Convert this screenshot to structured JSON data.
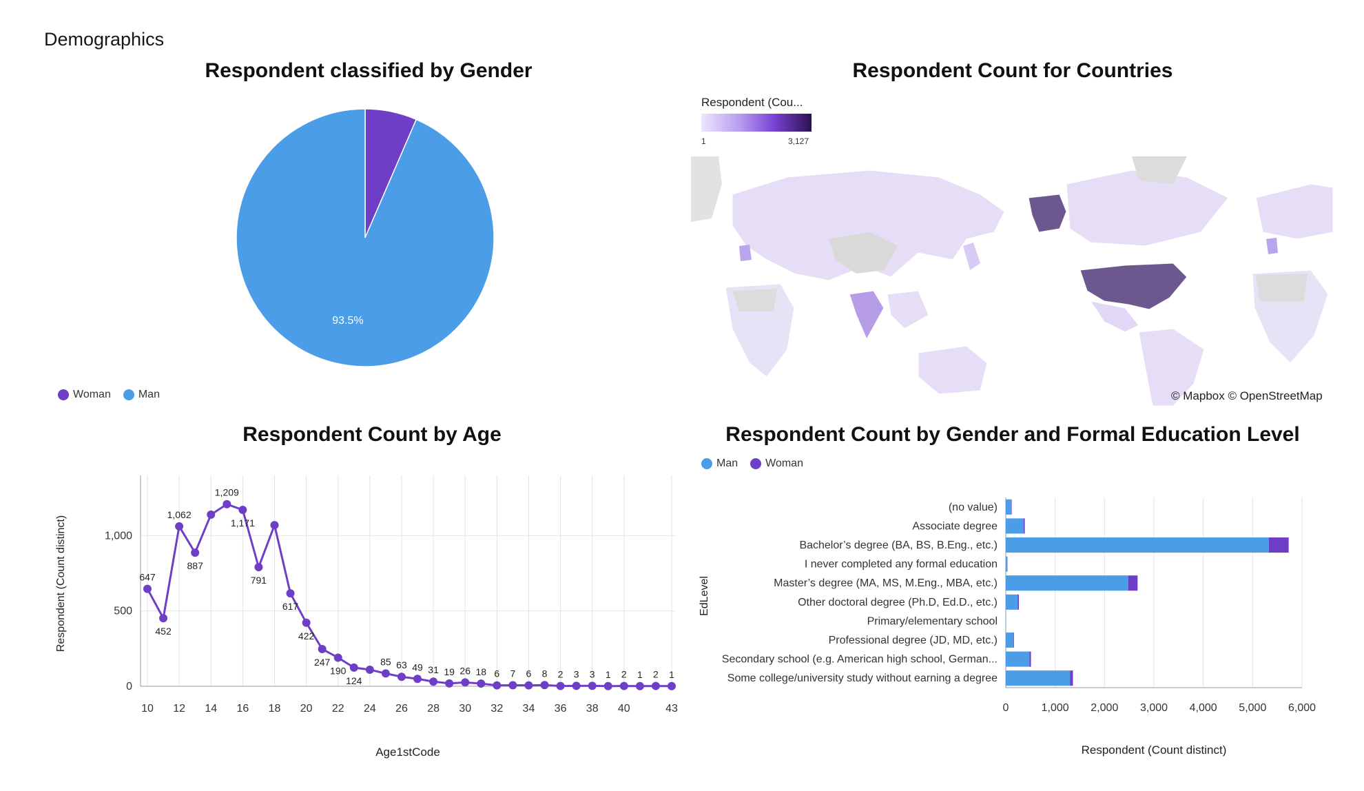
{
  "page_title": "Demographics",
  "colors": {
    "man": "#4a9de6",
    "woman": "#6e3fc6",
    "grid": "#e0e0e0",
    "axis": "#999999"
  },
  "gender_chart": {
    "title": "Respondent classified by Gender",
    "legend": [
      {
        "label": "Woman",
        "color": "#6e3fc6"
      },
      {
        "label": "Man",
        "color": "#4a9de6"
      }
    ]
  },
  "countries_chart": {
    "title": "Respondent Count for Countries",
    "legend_title": "Respondent (Cou...",
    "legend_min": "1",
    "legend_max": "3,127",
    "credit": "© Mapbox © OpenStreetMap"
  },
  "age_chart": {
    "title": "Respondent Count by Age",
    "xlabel": "Age1stCode",
    "ylabel": "Respondent (Count distinct)"
  },
  "edu_chart": {
    "title": "Respondent Count by Gender and Formal Education Level",
    "ylabel": "EdLevel",
    "xlabel": "Respondent (Count distinct)",
    "legend": [
      {
        "label": "Man",
        "color": "#4a9de6"
      },
      {
        "label": "Woman",
        "color": "#6e3fc6"
      }
    ]
  },
  "chart_data": [
    {
      "type": "pie",
      "title": "Respondent classified by Gender",
      "categories": [
        "Woman",
        "Man"
      ],
      "values": [
        6.5,
        93.5
      ],
      "labels": [
        "",
        "93.5%"
      ],
      "colors": [
        "#6e3fc6",
        "#4a9de6"
      ]
    },
    {
      "type": "line",
      "title": "Respondent Count by Age",
      "xlabel": "Age1stCode",
      "ylabel": "Respondent (Count distinct)",
      "x": [
        10,
        11,
        12,
        13,
        14,
        15,
        16,
        17,
        18,
        19,
        20,
        21,
        22,
        23,
        24,
        25,
        26,
        27,
        28,
        29,
        30,
        31,
        32,
        33,
        34,
        35,
        36,
        37,
        38,
        39,
        40,
        41,
        42,
        43
      ],
      "values": [
        647,
        452,
        1062,
        887,
        1140,
        1209,
        1171,
        791,
        1070,
        617,
        422,
        247,
        190,
        124,
        110,
        85,
        63,
        49,
        31,
        19,
        26,
        18,
        6,
        7,
        6,
        8,
        2,
        3,
        3,
        1,
        2,
        1,
        2,
        1
      ],
      "point_labels": [
        "647",
        "452",
        "1,062",
        "887",
        "",
        "1,209",
        "1,171",
        "791",
        "",
        "617",
        "422",
        "247",
        "190",
        "124",
        "",
        "85",
        "63",
        "49",
        "31",
        "19",
        "26",
        "18",
        "6",
        "7",
        "6",
        "8",
        "2",
        "3",
        "3",
        "1",
        "2",
        "1",
        "2",
        "1"
      ],
      "x_ticks": [
        "10",
        "12",
        "14",
        "16",
        "18",
        "20",
        "22",
        "24",
        "26",
        "28",
        "30",
        "32",
        "34",
        "36",
        "38",
        "40",
        "43"
      ],
      "y_ticks": [
        "0",
        "500",
        "1,000"
      ],
      "ylim": [
        0,
        1400
      ],
      "grid": true,
      "color": "#6e3fc6"
    },
    {
      "type": "bar",
      "orientation": "horizontal",
      "stacked": true,
      "title": "Respondent Count by Gender and Formal Education Level",
      "xlabel": "Respondent (Count distinct)",
      "ylabel": "EdLevel",
      "categories": [
        "(no value)",
        "Associate degree",
        "Bachelor’s degree (BA, BS, B.Eng., etc.)",
        "I never completed any formal education",
        "Master’s degree (MA, MS, M.Eng., MBA, etc.)",
        "Other doctoral degree (Ph.D, Ed.D., etc.)",
        "Primary/elementary school",
        "Professional degree (JD, MD, etc.)",
        "Secondary school (e.g. American high school, German...",
        "Some college/university study without earning a degree"
      ],
      "series": [
        {
          "name": "Man",
          "values": [
            110,
            360,
            5330,
            30,
            2480,
            240,
            5,
            150,
            480,
            1300
          ],
          "color": "#4a9de6"
        },
        {
          "name": "Woman",
          "values": [
            10,
            25,
            400,
            5,
            190,
            25,
            1,
            15,
            30,
            60
          ],
          "color": "#6e3fc6"
        }
      ],
      "x_ticks": [
        "0",
        "1,000",
        "2,000",
        "3,000",
        "4,000",
        "5,000",
        "6,000"
      ],
      "xlim": [
        0,
        6000
      ],
      "grid": true,
      "legend": "top-left"
    }
  ]
}
